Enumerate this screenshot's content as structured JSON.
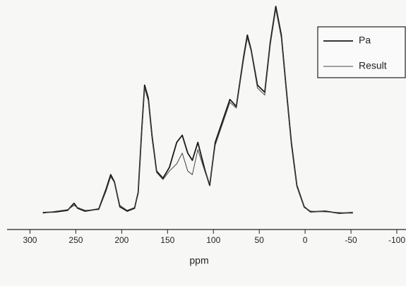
{
  "chart_data": {
    "type": "line",
    "x_label": "ppm",
    "x": [
      286,
      271,
      259,
      252,
      248,
      240,
      225,
      217,
      212,
      208,
      202,
      194,
      186,
      182,
      178,
      175,
      171,
      167,
      162,
      155,
      148,
      140,
      134,
      128,
      123,
      117,
      109,
      104,
      98,
      90,
      82,
      75,
      67,
      63,
      59,
      52,
      44,
      38,
      32,
      26,
      21,
      15,
      9,
      1,
      -6,
      -22,
      -37,
      -52
    ],
    "series": [
      {
        "name": "Pa",
        "color": "#1a1a1a",
        "values": [
          2,
          3,
          5,
          15,
          8,
          4,
          7,
          35,
          55,
          45,
          10,
          4,
          8,
          30,
          120,
          180,
          162,
          110,
          60,
          50,
          65,
          100,
          110,
          85,
          75,
          100,
          60,
          40,
          100,
          130,
          160,
          150,
          220,
          250,
          230,
          180,
          170,
          240,
          290,
          250,
          180,
          100,
          40,
          10,
          3,
          4,
          1,
          2
        ]
      },
      {
        "name": "Result",
        "color": "#444444",
        "values": [
          1,
          4,
          6,
          12,
          9,
          5,
          6,
          32,
          52,
          44,
          12,
          5,
          9,
          28,
          115,
          176,
          158,
          106,
          58,
          48,
          60,
          70,
          85,
          60,
          55,
          90,
          58,
          42,
          96,
          126,
          156,
          148,
          216,
          246,
          228,
          176,
          166,
          236,
          286,
          246,
          176,
          96,
          38,
          9,
          4,
          3,
          2,
          1
        ]
      }
    ],
    "xlim": [
      325,
      -110
    ],
    "xticks": [
      300,
      250,
      200,
      150,
      100,
      50,
      0,
      -50,
      -100
    ],
    "legend": "top-right"
  }
}
